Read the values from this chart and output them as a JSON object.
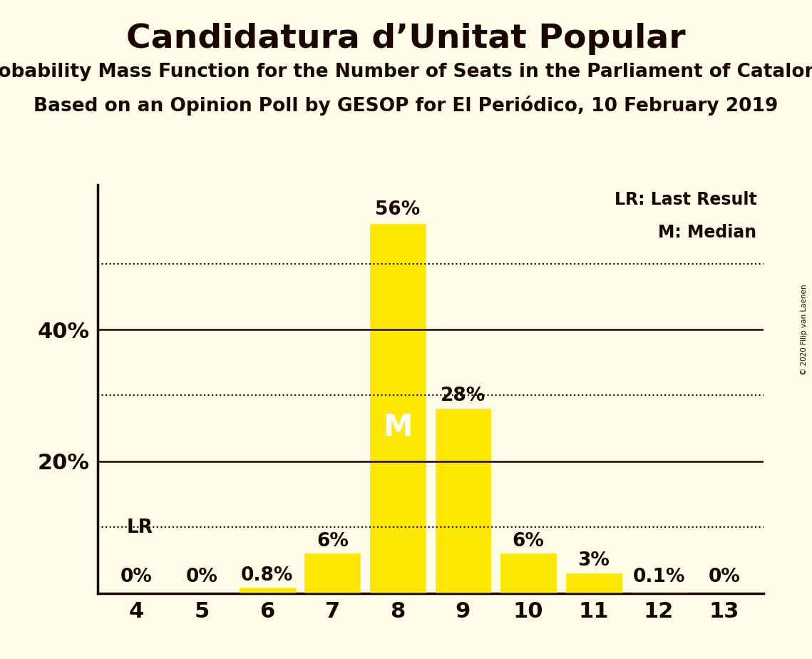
{
  "title": "Candidatura d’Unitat Popular",
  "subtitle1": "Probability Mass Function for the Number of Seats in the Parliament of Catalonia",
  "subtitle2": "Based on an Opinion Poll by GESOP for El Periódico, 10 February 2019",
  "copyright": "© 2020 Filip van Laenen",
  "categories": [
    4,
    5,
    6,
    7,
    8,
    9,
    10,
    11,
    12,
    13
  ],
  "values": [
    0.0,
    0.0,
    0.8,
    6.0,
    56.0,
    28.0,
    6.0,
    3.0,
    0.1,
    0.0
  ],
  "labels": [
    "0%",
    "0%",
    "0.8%",
    "6%",
    "56%",
    "28%",
    "6%",
    "3%",
    "0.1%",
    "0%"
  ],
  "bar_color": "#FFE800",
  "bar_edge_color": "#FFE800",
  "background_color": "#FFFDE8",
  "text_color": "#1a0500",
  "title_fontsize": 34,
  "subtitle_fontsize": 19,
  "label_fontsize": 19,
  "axis_label_fontsize": 22,
  "ytick_labels": [
    "20%",
    "40%"
  ],
  "ytick_values": [
    20,
    40
  ],
  "solid_lines": [
    0,
    20,
    40
  ],
  "dotted_lines": [
    10,
    30,
    50
  ],
  "ylim": [
    0,
    62
  ],
  "median_seat": 8,
  "lr_seat": 4,
  "legend_lr": "LR: Last Result",
  "legend_m": "M: Median"
}
